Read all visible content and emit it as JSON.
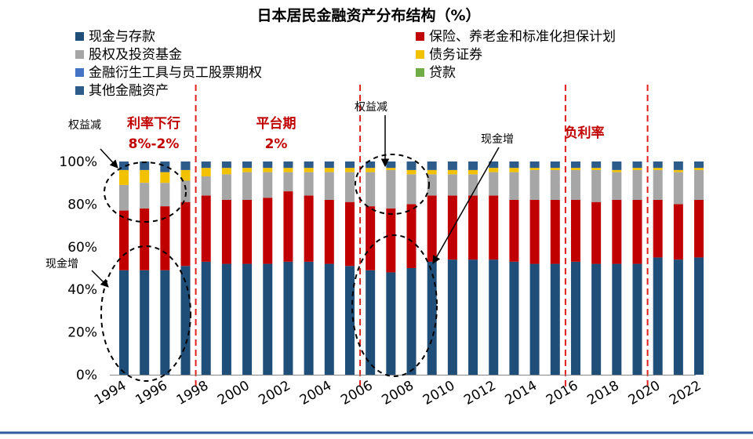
{
  "chart_data": {
    "type": "bar",
    "stacked": true,
    "title": "日本居民金融资产分布结构（%）",
    "categories": [
      "1994",
      "1995",
      "1996",
      "1997",
      "1998",
      "1999",
      "2000",
      "2001",
      "2002",
      "2003",
      "2004",
      "2005",
      "2006",
      "2007",
      "2008",
      "2009",
      "2010",
      "2011",
      "2012",
      "2013",
      "2014",
      "2015",
      "2016",
      "2017",
      "2018",
      "2019",
      "2020",
      "2021",
      "2022"
    ],
    "x_tick_labels": [
      "1994",
      "1996",
      "1998",
      "2000",
      "2002",
      "2004",
      "2006",
      "2008",
      "2010",
      "2012",
      "2014",
      "2016",
      "2018",
      "2020",
      "2022"
    ],
    "y_tick_labels": [
      "0%",
      "20%",
      "40%",
      "60%",
      "80%",
      "100%"
    ],
    "ylim": [
      0,
      100
    ],
    "series": [
      {
        "name": "现金与存款",
        "color": "#1f4e79",
        "values": [
          49,
          49,
          49,
          51,
          53,
          52,
          52,
          52,
          53,
          53,
          52,
          51,
          49,
          48,
          50,
          53,
          54,
          54,
          54,
          53,
          52,
          52,
          53,
          52,
          52,
          52,
          55,
          54,
          55
        ]
      },
      {
        "name": "保险、养老金和标准化担保计划",
        "color": "#c00000",
        "values": [
          28,
          29,
          30,
          30,
          31,
          30,
          30,
          31,
          33,
          31,
          30,
          30,
          30,
          30,
          30,
          31,
          30,
          30,
          30,
          29,
          30,
          30,
          29,
          29,
          30,
          30,
          27,
          26,
          27
        ]
      },
      {
        "name": "股权及投资基金",
        "color": "#a6a6a6",
        "values": [
          12,
          12,
          11,
          10,
          9,
          12,
          13,
          12,
          9,
          11,
          13,
          14,
          16,
          18,
          14,
          10,
          10,
          10,
          11,
          13,
          14,
          14,
          14,
          15,
          13,
          14,
          14,
          15,
          14
        ]
      },
      {
        "name": "债务证券",
        "color": "#f2c200",
        "values": [
          7,
          6,
          5,
          5,
          4,
          3,
          2,
          2,
          2,
          2,
          2,
          2,
          2,
          1,
          2,
          2,
          2,
          2,
          2,
          2,
          1,
          1,
          1,
          1,
          1,
          1,
          1,
          1,
          1
        ]
      },
      {
        "name": "金融衍生工具与员工股票期权",
        "color": "#4472c4",
        "values": [
          0,
          0,
          0,
          0,
          0,
          0,
          0,
          0,
          0,
          0,
          0,
          0,
          0,
          0,
          0,
          0,
          0,
          0,
          0,
          0,
          0,
          0,
          0,
          0,
          0,
          0,
          0,
          0,
          0
        ]
      },
      {
        "name": "贷款",
        "color": "#70ad47",
        "values": [
          0,
          0,
          0,
          0,
          0,
          0,
          0,
          0,
          0,
          0,
          0,
          0,
          0,
          0,
          0,
          0,
          0,
          0,
          0,
          0,
          0,
          0,
          0,
          0,
          0,
          0,
          0,
          0,
          0
        ]
      },
      {
        "name": "其他金融资产",
        "color": "#2e5c8a",
        "values": [
          4,
          4,
          5,
          4,
          3,
          3,
          3,
          3,
          3,
          3,
          3,
          3,
          3,
          3,
          4,
          4,
          4,
          4,
          3,
          3,
          3,
          3,
          3,
          3,
          4,
          3,
          3,
          4,
          3
        ]
      }
    ],
    "periods": [
      {
        "label": "利率下行",
        "sublabel": "8%-2%",
        "start": "1994",
        "end": "1997"
      },
      {
        "label": "平台期",
        "sublabel": "2%",
        "start": "1998",
        "end": "2006"
      },
      {
        "label": "负利率",
        "sublabel": "",
        "start": "2016",
        "end": "2022"
      }
    ],
    "period_dividers": [
      "1998",
      "2006",
      "2016",
      "2020"
    ],
    "annotations": [
      {
        "text": "权益减",
        "near": "1994-1997",
        "target": "股权及投资基金"
      },
      {
        "text": "现金增",
        "near": "1994-1997",
        "target": "现金与存款"
      },
      {
        "text": "权益减",
        "near": "2006-2009",
        "target": "股权及投资基金"
      },
      {
        "text": "现金增",
        "near": "2006-2009",
        "target": "现金与存款"
      }
    ],
    "legend_placement": "top",
    "grid": false
  }
}
